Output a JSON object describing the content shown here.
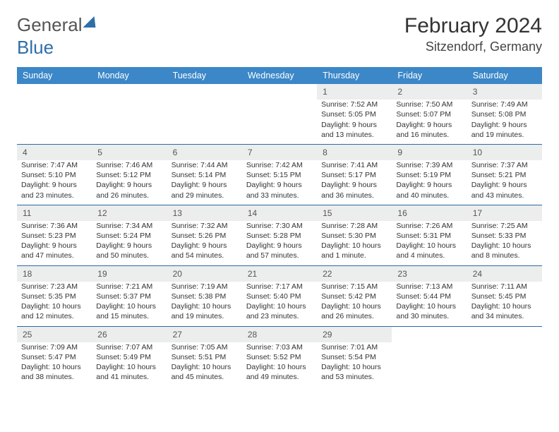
{
  "logo": {
    "text1": "General",
    "text2": "Blue"
  },
  "title": "February 2024",
  "location": "Sitzendorf, Germany",
  "colors": {
    "header_bg": "#3b87c8",
    "header_fg": "#ffffff",
    "daynum_bg": "#eceded",
    "border": "#2b6aa5",
    "logo_blue": "#2f6fa8"
  },
  "weekdays": [
    "Sunday",
    "Monday",
    "Tuesday",
    "Wednesday",
    "Thursday",
    "Friday",
    "Saturday"
  ],
  "weeks": [
    [
      null,
      null,
      null,
      null,
      {
        "n": "1",
        "sunrise": "7:52 AM",
        "sunset": "5:05 PM",
        "daylight": "9 hours and 13 minutes."
      },
      {
        "n": "2",
        "sunrise": "7:50 AM",
        "sunset": "5:07 PM",
        "daylight": "9 hours and 16 minutes."
      },
      {
        "n": "3",
        "sunrise": "7:49 AM",
        "sunset": "5:08 PM",
        "daylight": "9 hours and 19 minutes."
      }
    ],
    [
      {
        "n": "4",
        "sunrise": "7:47 AM",
        "sunset": "5:10 PM",
        "daylight": "9 hours and 23 minutes."
      },
      {
        "n": "5",
        "sunrise": "7:46 AM",
        "sunset": "5:12 PM",
        "daylight": "9 hours and 26 minutes."
      },
      {
        "n": "6",
        "sunrise": "7:44 AM",
        "sunset": "5:14 PM",
        "daylight": "9 hours and 29 minutes."
      },
      {
        "n": "7",
        "sunrise": "7:42 AM",
        "sunset": "5:15 PM",
        "daylight": "9 hours and 33 minutes."
      },
      {
        "n": "8",
        "sunrise": "7:41 AM",
        "sunset": "5:17 PM",
        "daylight": "9 hours and 36 minutes."
      },
      {
        "n": "9",
        "sunrise": "7:39 AM",
        "sunset": "5:19 PM",
        "daylight": "9 hours and 40 minutes."
      },
      {
        "n": "10",
        "sunrise": "7:37 AM",
        "sunset": "5:21 PM",
        "daylight": "9 hours and 43 minutes."
      }
    ],
    [
      {
        "n": "11",
        "sunrise": "7:36 AM",
        "sunset": "5:23 PM",
        "daylight": "9 hours and 47 minutes."
      },
      {
        "n": "12",
        "sunrise": "7:34 AM",
        "sunset": "5:24 PM",
        "daylight": "9 hours and 50 minutes."
      },
      {
        "n": "13",
        "sunrise": "7:32 AM",
        "sunset": "5:26 PM",
        "daylight": "9 hours and 54 minutes."
      },
      {
        "n": "14",
        "sunrise": "7:30 AM",
        "sunset": "5:28 PM",
        "daylight": "9 hours and 57 minutes."
      },
      {
        "n": "15",
        "sunrise": "7:28 AM",
        "sunset": "5:30 PM",
        "daylight": "10 hours and 1 minute."
      },
      {
        "n": "16",
        "sunrise": "7:26 AM",
        "sunset": "5:31 PM",
        "daylight": "10 hours and 4 minutes."
      },
      {
        "n": "17",
        "sunrise": "7:25 AM",
        "sunset": "5:33 PM",
        "daylight": "10 hours and 8 minutes."
      }
    ],
    [
      {
        "n": "18",
        "sunrise": "7:23 AM",
        "sunset": "5:35 PM",
        "daylight": "10 hours and 12 minutes."
      },
      {
        "n": "19",
        "sunrise": "7:21 AM",
        "sunset": "5:37 PM",
        "daylight": "10 hours and 15 minutes."
      },
      {
        "n": "20",
        "sunrise": "7:19 AM",
        "sunset": "5:38 PM",
        "daylight": "10 hours and 19 minutes."
      },
      {
        "n": "21",
        "sunrise": "7:17 AM",
        "sunset": "5:40 PM",
        "daylight": "10 hours and 23 minutes."
      },
      {
        "n": "22",
        "sunrise": "7:15 AM",
        "sunset": "5:42 PM",
        "daylight": "10 hours and 26 minutes."
      },
      {
        "n": "23",
        "sunrise": "7:13 AM",
        "sunset": "5:44 PM",
        "daylight": "10 hours and 30 minutes."
      },
      {
        "n": "24",
        "sunrise": "7:11 AM",
        "sunset": "5:45 PM",
        "daylight": "10 hours and 34 minutes."
      }
    ],
    [
      {
        "n": "25",
        "sunrise": "7:09 AM",
        "sunset": "5:47 PM",
        "daylight": "10 hours and 38 minutes."
      },
      {
        "n": "26",
        "sunrise": "7:07 AM",
        "sunset": "5:49 PM",
        "daylight": "10 hours and 41 minutes."
      },
      {
        "n": "27",
        "sunrise": "7:05 AM",
        "sunset": "5:51 PM",
        "daylight": "10 hours and 45 minutes."
      },
      {
        "n": "28",
        "sunrise": "7:03 AM",
        "sunset": "5:52 PM",
        "daylight": "10 hours and 49 minutes."
      },
      {
        "n": "29",
        "sunrise": "7:01 AM",
        "sunset": "5:54 PM",
        "daylight": "10 hours and 53 minutes."
      },
      null,
      null
    ]
  ],
  "labels": {
    "sunrise": "Sunrise:",
    "sunset": "Sunset:",
    "daylight": "Daylight:"
  }
}
